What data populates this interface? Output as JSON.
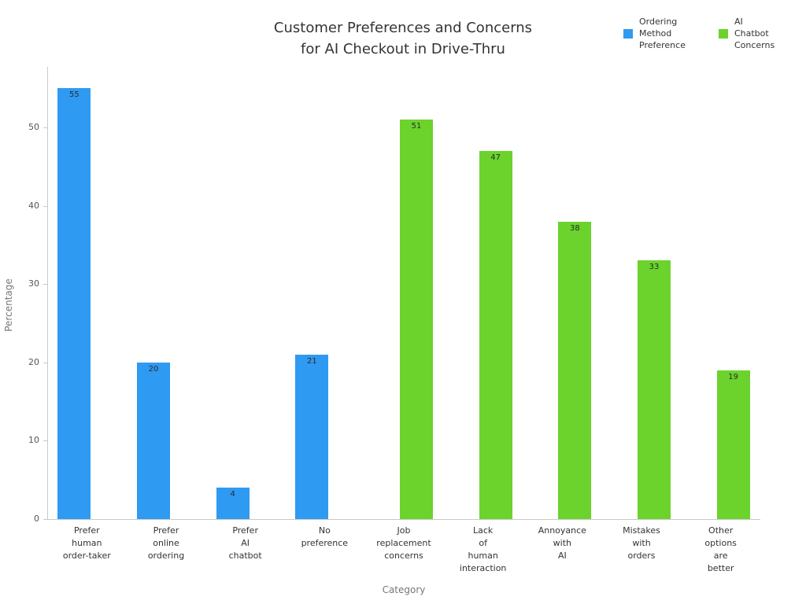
{
  "title": "Customer Preferences and Concerns\nfor AI Checkout in Drive-Thru",
  "legend": {
    "items": [
      {
        "label": "Ordering\nMethod\nPreference",
        "color": "#2e9af2"
      },
      {
        "label": "AI\nChatbot\nConcerns",
        "color": "#6bd32c"
      }
    ]
  },
  "axes": {
    "x_title": "Category",
    "y_title": "Percentage"
  },
  "chart_data": {
    "type": "bar",
    "title": "Customer Preferences and Concerns for AI Checkout in Drive-Thru",
    "xlabel": "Category",
    "ylabel": "Percentage",
    "ylim": [
      0,
      57.75
    ],
    "yticks": [
      0,
      10,
      20,
      30,
      40,
      50
    ],
    "grid": false,
    "legend_position": "top-right",
    "categories": [
      "Prefer\nhuman\norder-taker",
      "Prefer\nonline\nordering",
      "Prefer\nAI\nchatbot",
      "No\npreference",
      "Job\nreplacement\nconcerns",
      "Lack\nof\nhuman\ninteraction",
      "Annoyance\nwith\nAI",
      "Mistakes\nwith\norders",
      "Other\noptions\nare\nbetter"
    ],
    "series": [
      {
        "name": "Ordering Method Preference",
        "color": "#2e9af2",
        "values": [
          55,
          20,
          4,
          21,
          null,
          null,
          null,
          null,
          null
        ]
      },
      {
        "name": "AI Chatbot Concerns",
        "color": "#6bd32c",
        "values": [
          null,
          null,
          null,
          null,
          51,
          47,
          38,
          33,
          19
        ]
      }
    ]
  }
}
